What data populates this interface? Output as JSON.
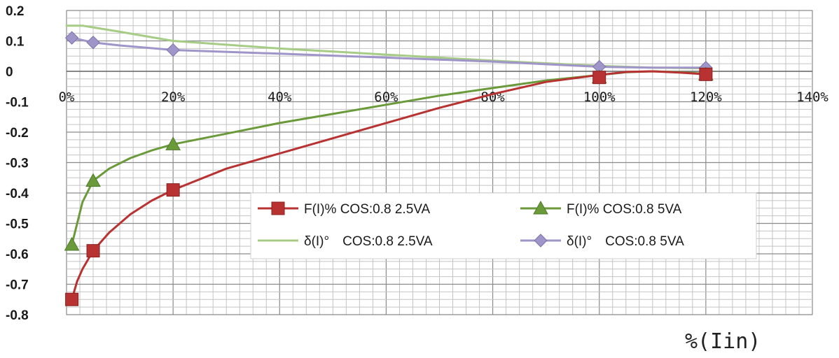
{
  "chart_data": {
    "type": "line",
    "title": "",
    "xlabel": "%(Iin)",
    "ylabel": "",
    "xlim": [
      0,
      140
    ],
    "ylim": [
      -0.8,
      0.2
    ],
    "x_ticks": [
      "0%",
      "20%",
      "40%",
      "60%",
      "80%",
      "100%",
      "120%",
      "140%"
    ],
    "y_ticks": [
      "0.2",
      "0.1",
      "0",
      "-0.1",
      "-0.2",
      "-0.3",
      "-0.4",
      "-0.5",
      "-0.6",
      "-0.7",
      "-0.8"
    ],
    "grid": true,
    "legend_position": "lower-right",
    "series": [
      {
        "name": "F(I)% COS:0.8 2.5VA",
        "color": "#b83232",
        "marker": "square",
        "points": [
          [
            1,
            -0.75
          ],
          [
            5,
            -0.59
          ],
          [
            20,
            -0.39
          ],
          [
            100,
            -0.02
          ],
          [
            120,
            -0.01
          ]
        ],
        "curve": [
          [
            1,
            -0.75
          ],
          [
            2,
            -0.69
          ],
          [
            3,
            -0.65
          ],
          [
            5,
            -0.59
          ],
          [
            8,
            -0.53
          ],
          [
            12,
            -0.47
          ],
          [
            16,
            -0.425
          ],
          [
            20,
            -0.39
          ],
          [
            30,
            -0.32
          ],
          [
            40,
            -0.27
          ],
          [
            50,
            -0.22
          ],
          [
            60,
            -0.17
          ],
          [
            70,
            -0.12
          ],
          [
            80,
            -0.075
          ],
          [
            90,
            -0.035
          ],
          [
            100,
            -0.012
          ],
          [
            105,
            -0.002
          ],
          [
            110,
            0.0
          ],
          [
            115,
            -0.004
          ],
          [
            120,
            -0.01
          ]
        ]
      },
      {
        "name": "F(I)% COS:0.8 5VA",
        "color": "#6a9a3a",
        "marker": "triangle",
        "points": [
          [
            1,
            -0.57
          ],
          [
            5,
            -0.36
          ],
          [
            20,
            -0.24
          ],
          [
            100,
            -0.02
          ],
          [
            120,
            -0.01
          ]
        ],
        "curve": [
          [
            1,
            -0.57
          ],
          [
            2,
            -0.5
          ],
          [
            3,
            -0.43
          ],
          [
            5,
            -0.36
          ],
          [
            8,
            -0.32
          ],
          [
            12,
            -0.285
          ],
          [
            16,
            -0.26
          ],
          [
            20,
            -0.24
          ],
          [
            30,
            -0.205
          ],
          [
            40,
            -0.17
          ],
          [
            50,
            -0.14
          ],
          [
            60,
            -0.11
          ],
          [
            70,
            -0.08
          ],
          [
            80,
            -0.055
          ],
          [
            90,
            -0.03
          ],
          [
            100,
            -0.012
          ],
          [
            105,
            -0.003
          ],
          [
            110,
            0.0
          ],
          [
            115,
            -0.003
          ],
          [
            120,
            -0.008
          ]
        ]
      },
      {
        "name": "δ(I)°　COS:0.8 2.5VA",
        "color": "#a6cc86",
        "marker": "none",
        "points": [],
        "curve": [
          [
            0,
            0.15
          ],
          [
            3,
            0.15
          ],
          [
            10,
            0.13
          ],
          [
            20,
            0.1
          ],
          [
            40,
            0.075
          ],
          [
            60,
            0.055
          ],
          [
            80,
            0.035
          ],
          [
            100,
            0.018
          ],
          [
            110,
            0.012
          ],
          [
            120,
            0.01
          ]
        ]
      },
      {
        "name": "δ(I)°　COS:0.8 5VA",
        "color": "#9f95c8",
        "marker": "diamond",
        "points": [
          [
            1,
            0.11
          ],
          [
            5,
            0.095
          ],
          [
            20,
            0.07
          ],
          [
            100,
            0.015
          ],
          [
            120,
            0.012
          ]
        ],
        "curve": [
          [
            1,
            0.11
          ],
          [
            5,
            0.095
          ],
          [
            10,
            0.085
          ],
          [
            20,
            0.07
          ],
          [
            40,
            0.058
          ],
          [
            60,
            0.045
          ],
          [
            80,
            0.032
          ],
          [
            100,
            0.015
          ],
          [
            110,
            0.012
          ],
          [
            120,
            0.012
          ]
        ]
      }
    ]
  }
}
